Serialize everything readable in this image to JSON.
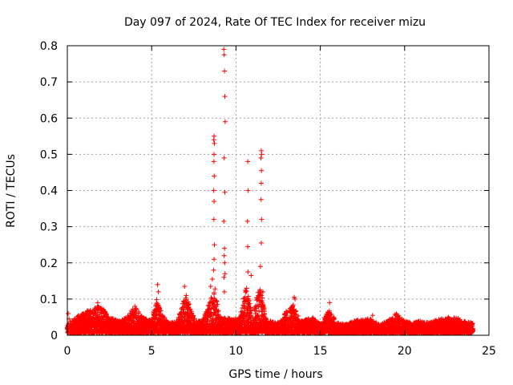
{
  "chart_data": {
    "type": "scatter",
    "title": "Day 097 of 2024, Rate Of TEC Index for receiver mizu",
    "xlabel": "GPS time / hours",
    "ylabel": "ROTI / TECUs",
    "xlim": [
      0,
      25
    ],
    "ylim": [
      0,
      0.8
    ],
    "xticks": [
      0,
      5,
      10,
      15,
      20,
      25
    ],
    "yticks": [
      0,
      0.1,
      0.2,
      0.3,
      0.4,
      0.5,
      0.6,
      0.7,
      0.8
    ],
    "xtick_labels": [
      "0",
      "5",
      "10",
      "15",
      "20",
      "25"
    ],
    "ytick_labels": [
      "0",
      "0.1",
      "0.2",
      "0.3",
      "0.4",
      "0.5",
      "0.6",
      "0.7",
      "0.8"
    ],
    "grid": true,
    "marker": "plus",
    "series_color": "#ff0000",
    "series": [
      {
        "name": "ROTI",
        "x": [
          9.28,
          9.3,
          9.32,
          9.34,
          9.36,
          9.3,
          9.34,
          9.28,
          9.32,
          9.3,
          9.33,
          9.29,
          9.31,
          8.7,
          8.68,
          8.72,
          8.7,
          8.69,
          8.71,
          8.68,
          8.7,
          8.69,
          8.72,
          8.7,
          8.68,
          10.7,
          10.72,
          10.68,
          10.7,
          10.71,
          11.5,
          11.52,
          11.48,
          11.51,
          11.5,
          11.49,
          11.52,
          11.5,
          5.35,
          5.4,
          6.95,
          7.05,
          13.45,
          15.55,
          0.05,
          0.1,
          1.8,
          4.0,
          8.5,
          8.6,
          9.35,
          10.9,
          11.45,
          11.6,
          13.5,
          18.1
        ],
        "y": [
          0.79,
          0.775,
          0.73,
          0.66,
          0.59,
          0.49,
          0.395,
          0.315,
          0.24,
          0.22,
          0.2,
          0.16,
          0.12,
          0.55,
          0.54,
          0.53,
          0.5,
          0.48,
          0.44,
          0.4,
          0.37,
          0.32,
          0.25,
          0.21,
          0.18,
          0.48,
          0.4,
          0.315,
          0.245,
          0.175,
          0.51,
          0.5,
          0.49,
          0.455,
          0.42,
          0.375,
          0.32,
          0.255,
          0.14,
          0.12,
          0.135,
          0.11,
          0.105,
          0.09,
          0.06,
          0.045,
          0.09,
          0.08,
          0.135,
          0.155,
          0.17,
          0.165,
          0.19,
          0.12,
          0.1,
          0.055
        ]
      }
    ],
    "envelope": {
      "note": "dense low-level scatter: upper envelope of ROTI values vs hour",
      "hours": [
        0,
        0.5,
        1.0,
        1.5,
        2.0,
        2.5,
        3.0,
        3.5,
        4.0,
        4.5,
        5.0,
        5.3,
        5.6,
        6.0,
        6.5,
        7.0,
        7.3,
        7.6,
        8.0,
        8.5,
        8.8,
        9.0,
        9.4,
        9.8,
        10.2,
        10.6,
        11.0,
        11.4,
        11.8,
        12.2,
        12.6,
        13.0,
        13.4,
        13.8,
        14.2,
        14.6,
        15.0,
        15.5,
        16.0,
        16.5,
        17.0,
        17.5,
        18.0,
        18.5,
        19.0,
        19.5,
        20.0,
        20.5,
        21.0,
        21.5,
        22.0,
        22.5,
        23.0,
        23.5,
        24.0
      ],
      "roti": [
        0.03,
        0.05,
        0.065,
        0.075,
        0.085,
        0.05,
        0.04,
        0.05,
        0.08,
        0.05,
        0.04,
        0.1,
        0.06,
        0.035,
        0.04,
        0.11,
        0.08,
        0.04,
        0.04,
        0.1,
        0.14,
        0.05,
        0.05,
        0.045,
        0.05,
        0.14,
        0.05,
        0.15,
        0.04,
        0.04,
        0.035,
        0.07,
        0.09,
        0.04,
        0.045,
        0.05,
        0.03,
        0.07,
        0.035,
        0.03,
        0.04,
        0.045,
        0.045,
        0.03,
        0.04,
        0.06,
        0.04,
        0.035,
        0.04,
        0.035,
        0.045,
        0.05,
        0.05,
        0.04,
        0.035
      ]
    }
  }
}
